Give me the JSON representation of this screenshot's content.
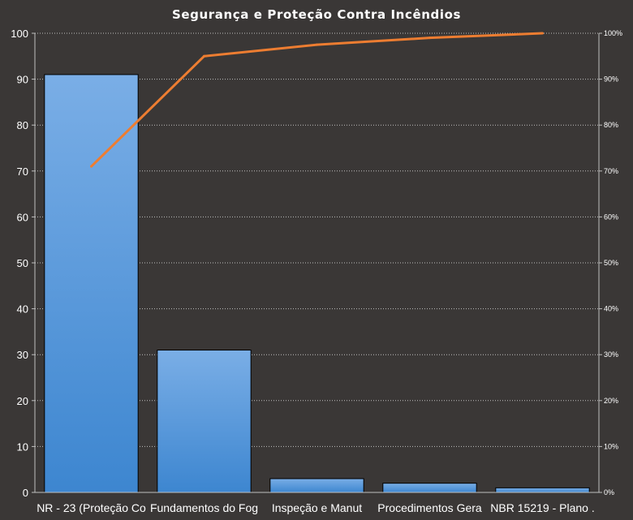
{
  "chart_data": {
    "type": "bar",
    "title": "Segurança e Proteção Contra Incêndios",
    "categories": [
      "NR - 23 (Proteção Co",
      "Fundamentos  do Fog",
      "Inspeção e Manut",
      "Procedimentos  Gera",
      "NBR 15219 - Plano ."
    ],
    "series": [
      {
        "type": "bar",
        "values": [
          91,
          31,
          3,
          2,
          1
        ]
      },
      {
        "type": "line",
        "axis": "secondary",
        "values": [
          0.71,
          0.95,
          0.975,
          0.99,
          1.0
        ]
      }
    ],
    "ylim": [
      0,
      100
    ],
    "yticks": [
      "0",
      "10",
      "20",
      "30",
      "40",
      "50",
      "60",
      "70",
      "80",
      "90",
      "100"
    ],
    "y2lim": [
      0,
      1
    ],
    "y2ticks": [
      "0%",
      "10%",
      "20%",
      "30%",
      "40%",
      "50%",
      "60%",
      "70%",
      "80%",
      "90%",
      "100%"
    ],
    "grid": true,
    "legend": "none",
    "colors": {
      "background": "#3a3736",
      "bar_top": "#7aaee6",
      "bar_bottom": "#3d86d0",
      "line": "#ed7d31",
      "grid": "#bfbfbf",
      "text": "#ffffff"
    }
  }
}
